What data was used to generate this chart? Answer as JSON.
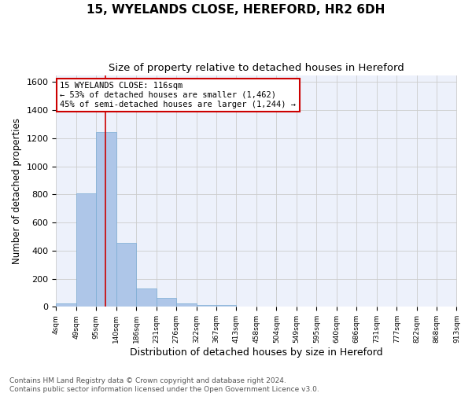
{
  "title1": "15, WYELANDS CLOSE, HEREFORD, HR2 6DH",
  "title2": "Size of property relative to detached houses in Hereford",
  "xlabel": "Distribution of detached houses by size in Hereford",
  "ylabel": "Number of detached properties",
  "bar_values": [
    25,
    810,
    1245,
    455,
    130,
    65,
    25,
    15,
    15,
    0,
    0,
    0,
    0,
    0,
    0,
    0,
    0,
    0,
    0,
    0
  ],
  "bin_edges": [
    4,
    49,
    95,
    140,
    186,
    231,
    276,
    322,
    367,
    413,
    458,
    504,
    549,
    595,
    640,
    686,
    731,
    777,
    822,
    868,
    913
  ],
  "bar_color": "#aec6e8",
  "bar_edgecolor": "#7bacd4",
  "grid_color": "#cccccc",
  "background_color": "#edf1fb",
  "red_line_x": 116,
  "annotation_line1": "15 WYELANDS CLOSE: 116sqm",
  "annotation_line2": "← 53% of detached houses are smaller (1,462)",
  "annotation_line3": "45% of semi-detached houses are larger (1,244) →",
  "annotation_box_color": "#ffffff",
  "annotation_border_color": "#cc0000",
  "ylim": [
    0,
    1650
  ],
  "yticks": [
    0,
    200,
    400,
    600,
    800,
    1000,
    1200,
    1400,
    1600
  ],
  "footer": "Contains HM Land Registry data © Crown copyright and database right 2024.\nContains public sector information licensed under the Open Government Licence v3.0.",
  "title1_fontsize": 11,
  "title2_fontsize": 9.5,
  "xlabel_fontsize": 9,
  "ylabel_fontsize": 8.5,
  "footer_fontsize": 6.5
}
